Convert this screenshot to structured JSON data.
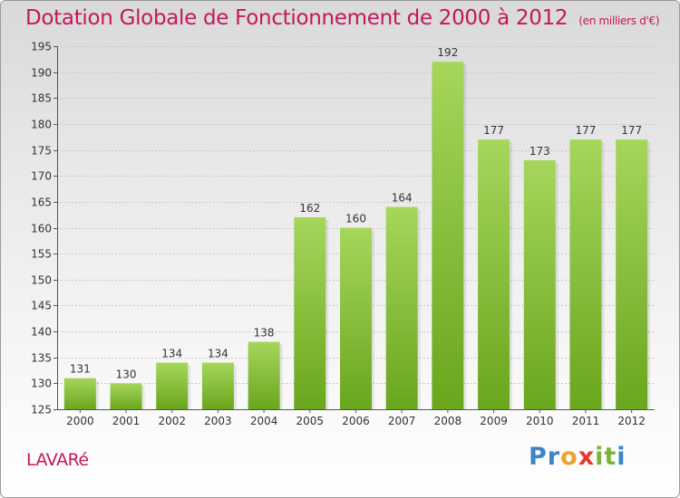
{
  "header": {
    "title": "Dotation Globale de Fonctionnement de 2000 à 2012",
    "subtitle": "(en milliers d'€)"
  },
  "footer": {
    "commune": "LAVARé",
    "logo_letters": [
      {
        "ch": "P",
        "color": "#3a86c8"
      },
      {
        "ch": "r",
        "color": "#3a86c8"
      },
      {
        "ch": "o",
        "color": "#f0a22e"
      },
      {
        "ch": "x",
        "color": "#e23a2e"
      },
      {
        "ch": "i",
        "color": "#7ab33e"
      },
      {
        "ch": "t",
        "color": "#7ab33e"
      },
      {
        "ch": "i",
        "color": "#3a86c8"
      }
    ]
  },
  "colors": {
    "bar_light": "#a6d65b",
    "bar_dark": "#6aa61e",
    "title": "#c2185b",
    "grid": "#c8c8c8",
    "axis": "#555555"
  },
  "chart_data": {
    "type": "bar",
    "categories": [
      "2000",
      "2001",
      "2002",
      "2003",
      "2004",
      "2005",
      "2006",
      "2007",
      "2008",
      "2009",
      "2010",
      "2011",
      "2012"
    ],
    "values": [
      131,
      130,
      134,
      134,
      138,
      162,
      160,
      164,
      192,
      177,
      173,
      177,
      177
    ],
    "data_labels": [
      "131",
      "130",
      "134",
      "134",
      "138",
      "162",
      "160",
      "164",
      "192",
      "177",
      "173",
      "177",
      "177"
    ],
    "y_ticks": [
      125,
      130,
      135,
      140,
      145,
      150,
      155,
      160,
      165,
      170,
      175,
      180,
      185,
      190,
      195
    ],
    "ylim": [
      125,
      195
    ],
    "grid": true,
    "title": "Dotation Globale de Fonctionnement de 2000 à 2012",
    "xlabel": "",
    "ylabel": ""
  }
}
